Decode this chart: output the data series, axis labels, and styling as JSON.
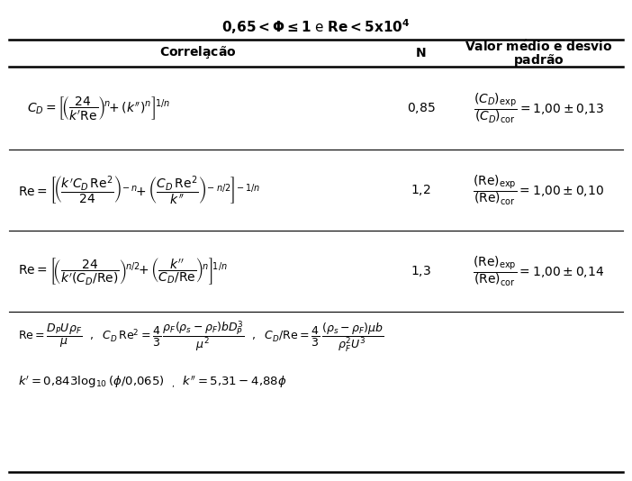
{
  "background_color": "#ffffff",
  "line_color": "#000000",
  "text_color": "#000000",
  "title": "0,65 < Φ ≤ 1 e Re < 5x10⁴",
  "figsize": [
    7.02,
    5.34
  ],
  "dpi": 100
}
